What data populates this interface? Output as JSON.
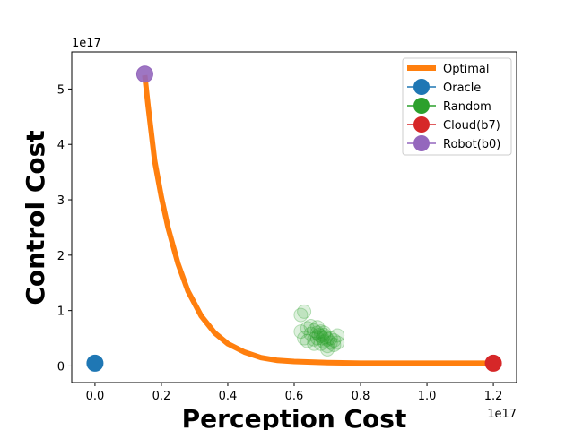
{
  "chart_data": {
    "type": "scatter",
    "xlabel": "Perception Cost",
    "ylabel": "Control Cost",
    "x_scale_label": "1e17",
    "y_scale_label": "1e17",
    "xlim": [
      -0.07,
      1.27
    ],
    "ylim": [
      -0.3,
      5.67
    ],
    "x_ticks": [
      0.0,
      0.2,
      0.4,
      0.6,
      0.8,
      1.0,
      1.2
    ],
    "x_tick_labels": [
      "0.0",
      "0.2",
      "0.4",
      "0.6",
      "0.8",
      "1.0",
      "1.2"
    ],
    "y_ticks": [
      0,
      1,
      2,
      3,
      4,
      5
    ],
    "y_tick_labels": [
      "0",
      "1",
      "2",
      "3",
      "4",
      "5"
    ],
    "grid": false,
    "legend_position": "top-right",
    "series": [
      {
        "name": "Optimal",
        "kind": "line",
        "color": "#ff7f0e",
        "points": [
          [
            0.15,
            5.25
          ],
          [
            0.16,
            4.7
          ],
          [
            0.17,
            4.2
          ],
          [
            0.18,
            3.7
          ],
          [
            0.2,
            3.05
          ],
          [
            0.22,
            2.5
          ],
          [
            0.25,
            1.85
          ],
          [
            0.28,
            1.35
          ],
          [
            0.32,
            0.9
          ],
          [
            0.36,
            0.6
          ],
          [
            0.4,
            0.4
          ],
          [
            0.45,
            0.25
          ],
          [
            0.5,
            0.15
          ],
          [
            0.55,
            0.1
          ],
          [
            0.6,
            0.08
          ],
          [
            0.7,
            0.06
          ],
          [
            0.8,
            0.05
          ],
          [
            1.0,
            0.05
          ],
          [
            1.2,
            0.05
          ]
        ]
      },
      {
        "name": "Oracle",
        "kind": "marker",
        "color": "#1f77b4",
        "points": [
          [
            0.0,
            0.05
          ]
        ]
      },
      {
        "name": "Random",
        "kind": "marker",
        "color": "#2ca02c",
        "points": [
          [
            0.63,
            0.98
          ],
          [
            0.62,
            0.92
          ],
          [
            0.62,
            0.62
          ],
          [
            0.63,
            0.5
          ],
          [
            0.64,
            0.68
          ],
          [
            0.65,
            0.58
          ],
          [
            0.65,
            0.72
          ],
          [
            0.66,
            0.64
          ],
          [
            0.66,
            0.48
          ],
          [
            0.67,
            0.6
          ],
          [
            0.67,
            0.7
          ],
          [
            0.67,
            0.5
          ],
          [
            0.68,
            0.54
          ],
          [
            0.68,
            0.62
          ],
          [
            0.68,
            0.4
          ],
          [
            0.69,
            0.44
          ],
          [
            0.69,
            0.56
          ],
          [
            0.69,
            0.6
          ],
          [
            0.7,
            0.48
          ],
          [
            0.7,
            0.36
          ],
          [
            0.7,
            0.3
          ],
          [
            0.71,
            0.5
          ],
          [
            0.71,
            0.42
          ],
          [
            0.72,
            0.46
          ],
          [
            0.72,
            0.38
          ],
          [
            0.73,
            0.55
          ],
          [
            0.73,
            0.42
          ],
          [
            0.66,
            0.4
          ],
          [
            0.64,
            0.45
          ],
          [
            0.695,
            0.52
          ],
          [
            0.675,
            0.56
          ],
          [
            0.685,
            0.5
          ]
        ]
      },
      {
        "name": "Cloud(b7)",
        "kind": "marker",
        "color": "#d62728",
        "points": [
          [
            1.2,
            0.05
          ]
        ]
      },
      {
        "name": "Robot(b0)",
        "kind": "marker",
        "color": "#9467bd",
        "points": [
          [
            0.15,
            5.27
          ]
        ]
      }
    ]
  }
}
